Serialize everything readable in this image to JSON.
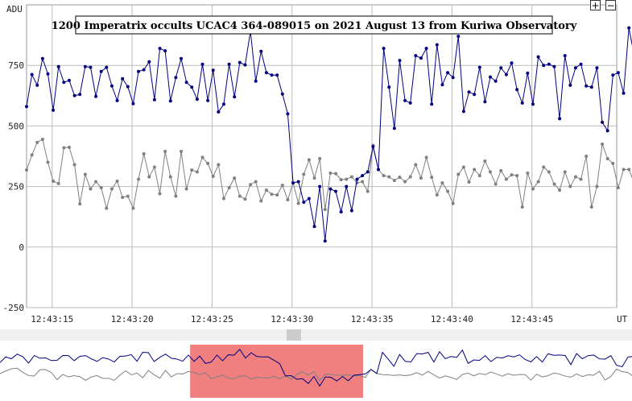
{
  "chart_data": {
    "type": "line",
    "title": "1200 Imperatrix occults UCAC4 364-089015 on 2021 August 13 from Kuriwa Observatory",
    "ylabel": "ADU",
    "xlabel": "UT",
    "ylim": [
      -250,
      1000
    ],
    "xlim": [
      "12:43:13.4",
      "12:43:50.3"
    ],
    "yticks": [
      -250,
      0,
      250,
      500,
      750
    ],
    "xticks": [
      "12:43:15",
      "12:43:20",
      "12:43:25",
      "12:43:30",
      "12:43:35",
      "12:43:40",
      "12:43:45"
    ],
    "grid": true,
    "colors": {
      "target": "#000080",
      "comparison": "#808080",
      "overview_selection": "#f08080"
    },
    "overview": {
      "selected_range": [
        "12:43:24.5",
        "12:43:34.6"
      ]
    },
    "series": [
      {
        "color": "#000080",
        "x_start": "12:43:13.4",
        "x_step_seconds": 0.3333,
        "values": [
          580,
          712,
          668,
          778,
          715,
          565,
          745,
          680,
          688,
          625,
          630,
          745,
          742,
          622,
          725,
          742,
          665,
          605,
          695,
          662,
          592,
          725,
          732,
          765,
          608,
          820,
          810,
          603,
          700,
          778,
          680,
          660,
          610,
          755,
          605,
          730,
          558,
          590,
          755,
          620,
          762,
          752,
          890,
          685,
          808,
          720,
          710,
          710,
          632,
          550,
          265,
          270,
          185,
          200,
          85,
          250,
          25,
          240,
          230,
          145,
          250,
          150,
          280,
          295,
          310,
          415,
          320,
          820,
          660,
          490,
          770,
          605,
          595,
          790,
          780,
          820,
          590,
          835,
          670,
          720,
          700,
          870,
          560,
          640,
          630,
          742,
          600,
          702,
          685,
          740,
          712,
          760,
          650,
          595,
          718,
          590,
          785,
          750,
          755,
          745,
          530,
          790,
          668,
          740,
          755,
          665,
          660,
          740,
          515,
          480,
          710,
          720,
          635,
          905,
          790
        ]
      },
      {
        "color": "#808080",
        "x_start": "12:43:13.4",
        "x_step_seconds": 0.3333,
        "values": [
          318,
          380,
          432,
          445,
          350,
          272,
          262,
          410,
          412,
          340,
          178,
          300,
          240,
          270,
          245,
          160,
          240,
          272,
          205,
          210,
          160,
          280,
          385,
          290,
          330,
          220,
          395,
          290,
          210,
          395,
          240,
          318,
          310,
          370,
          345,
          292,
          340,
          200,
          245,
          285,
          210,
          198,
          258,
          270,
          190,
          235,
          218,
          215,
          255,
          195,
          265,
          180,
          300,
          360,
          285,
          365,
          155,
          305,
          303,
          278,
          280,
          290,
          265,
          270,
          230,
          420,
          320,
          295,
          290,
          275,
          288,
          270,
          290,
          340,
          285,
          370,
          288,
          215,
          265,
          230,
          180,
          300,
          330,
          268,
          320,
          295,
          355,
          310,
          260,
          315,
          280,
          298,
          295,
          165,
          305,
          240,
          270,
          330,
          310,
          260,
          235,
          310,
          250,
          290,
          280,
          375,
          165,
          250,
          425,
          365,
          345,
          245,
          320,
          320,
          265
        ]
      }
    ]
  }
}
